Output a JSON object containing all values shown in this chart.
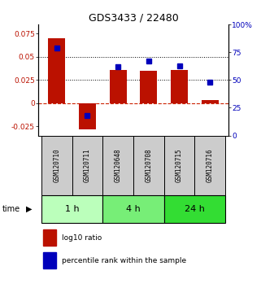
{
  "title": "GDS3433 / 22480",
  "samples": [
    "GSM120710",
    "GSM120711",
    "GSM120648",
    "GSM120708",
    "GSM120715",
    "GSM120716"
  ],
  "log10_ratio": [
    0.07,
    -0.028,
    0.036,
    0.035,
    0.036,
    0.003
  ],
  "percentile_rank": [
    0.79,
    0.18,
    0.62,
    0.67,
    0.63,
    0.48
  ],
  "time_groups": [
    {
      "label": "1 h",
      "indices": [
        0,
        1
      ],
      "color": "#bbffbb"
    },
    {
      "label": "4 h",
      "indices": [
        2,
        3
      ],
      "color": "#77ee77"
    },
    {
      "label": "24 h",
      "indices": [
        4,
        5
      ],
      "color": "#33dd33"
    }
  ],
  "ylim_left": [
    -0.035,
    0.085
  ],
  "ylim_right": [
    0,
    1.0
  ],
  "yticks_left": [
    -0.025,
    0,
    0.025,
    0.05,
    0.075
  ],
  "ytick_labels_left": [
    "-0.025",
    "0",
    "0.025",
    "0.05",
    "0.075"
  ],
  "yticks_right": [
    0,
    0.25,
    0.5,
    0.75,
    1.0
  ],
  "ytick_labels_right": [
    "0",
    "25",
    "50",
    "75",
    "100%"
  ],
  "hlines_dotted": [
    0.025,
    0.05
  ],
  "bar_color": "#bb1100",
  "dot_color": "#0000bb",
  "zero_line_color": "#cc2200",
  "sample_box_color": "#cccccc",
  "legend_items": [
    {
      "color": "#bb1100",
      "label": "log10 ratio"
    },
    {
      "color": "#0000bb",
      "label": "percentile rank within the sample"
    }
  ]
}
